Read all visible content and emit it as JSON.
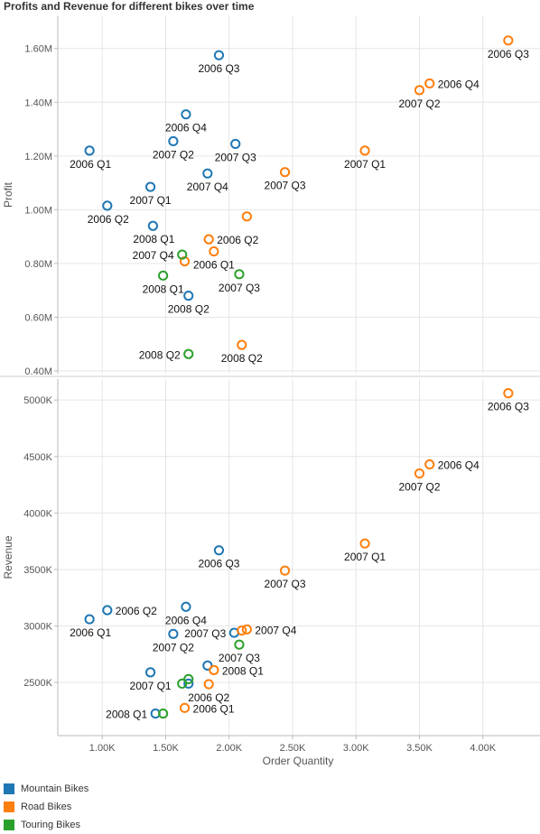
{
  "title": "Profits and Revenue for different bikes over time",
  "colors": {
    "Mountain Bikes": "#1f77b4",
    "Road Bikes": "#ff7f0e",
    "Touring Bikes": "#2ca02c",
    "grid": "#e6e6e6",
    "axis": "#bbbbbb"
  },
  "chart_data": [
    {
      "type": "scatter",
      "title": "Profits and Revenue for different bikes over time",
      "xlabel": "Order Quantity",
      "ylabel": "Profit",
      "xlim": [
        650,
        4450
      ],
      "ylim": [
        390000,
        1720000
      ],
      "x_ticks": [
        {
          "v": 1000,
          "label": "1.00K"
        },
        {
          "v": 1500,
          "label": "1.50K"
        },
        {
          "v": 2000,
          "label": "2.00K"
        },
        {
          "v": 2500,
          "label": "2.50K"
        },
        {
          "v": 3000,
          "label": "3.00K"
        },
        {
          "v": 3500,
          "label": "3.50K"
        },
        {
          "v": 4000,
          "label": "4.00K"
        }
      ],
      "y_ticks": [
        {
          "v": 400000,
          "label": "0.40M"
        },
        {
          "v": 600000,
          "label": "0.60M"
        },
        {
          "v": 800000,
          "label": "0.80M"
        },
        {
          "v": 1000000,
          "label": "1.00M"
        },
        {
          "v": 1200000,
          "label": "1.20M"
        },
        {
          "v": 1400000,
          "label": "1.40M"
        },
        {
          "v": 1600000,
          "label": "1.60M"
        }
      ],
      "series": [
        {
          "name": "Mountain Bikes",
          "points": [
            {
              "label": "2006 Q1",
              "x": 900,
              "y": 1220000,
              "pos": "bl"
            },
            {
              "label": "2006 Q2",
              "x": 1040,
              "y": 1015000,
              "pos": "bl"
            },
            {
              "label": "2006 Q3",
              "x": 1920,
              "y": 1575000,
              "pos": "b"
            },
            {
              "label": "2006 Q4",
              "x": 1660,
              "y": 1355000,
              "pos": "b"
            },
            {
              "label": "2007 Q1",
              "x": 1380,
              "y": 1085000,
              "pos": "b"
            },
            {
              "label": "2007 Q2",
              "x": 1560,
              "y": 1255000,
              "pos": "b"
            },
            {
              "label": "2007 Q3",
              "x": 2050,
              "y": 1245000,
              "pos": "b"
            },
            {
              "label": "2007 Q4",
              "x": 1830,
              "y": 1135000,
              "pos": "b"
            },
            {
              "label": "2008 Q1",
              "x": 1400,
              "y": 940000,
              "pos": "bl"
            },
            {
              "label": "2008 Q2",
              "x": 1680,
              "y": 680000,
              "pos": "b"
            }
          ]
        },
        {
          "name": "Road Bikes",
          "points": [
            {
              "label": "2006 Q1",
              "x": 1880,
              "y": 845000,
              "pos": "b"
            },
            {
              "label": "2006 Q2",
              "x": 1840,
              "y": 890000,
              "pos": "r"
            },
            {
              "label": "2006 Q3",
              "x": 4200,
              "y": 1630000,
              "pos": "b"
            },
            {
              "label": "2006 Q4",
              "x": 3580,
              "y": 1470000,
              "pos": "r"
            },
            {
              "label": "2007 Q1",
              "x": 3070,
              "y": 1220000,
              "pos": "b"
            },
            {
              "label": "2007 Q2",
              "x": 3500,
              "y": 1445000,
              "pos": "b"
            },
            {
              "label": "2007 Q3",
              "x": 2440,
              "y": 1140000,
              "pos": "b"
            },
            {
              "label": "2007 Q4",
              "x": 2140,
              "y": 975000,
              "pos": "none"
            },
            {
              "label": "2008 Q1",
              "x": 1650,
              "y": 808000,
              "pos": "none"
            },
            {
              "label": "2008 Q2",
              "x": 2100,
              "y": 497000,
              "pos": "b"
            }
          ]
        },
        {
          "name": "Touring Bikes",
          "points": [
            {
              "label": "2007 Q3",
              "x": 2080,
              "y": 760000,
              "pos": "b"
            },
            {
              "label": "2007 Q4",
              "x": 1630,
              "y": 833000,
              "pos": "l"
            },
            {
              "label": "2008 Q1",
              "x": 1480,
              "y": 755000,
              "pos": "b"
            },
            {
              "label": "2008 Q2",
              "x": 1680,
              "y": 463000,
              "pos": "l"
            }
          ]
        }
      ]
    },
    {
      "type": "scatter",
      "xlabel": "Order Quantity",
      "ylabel": "Revenue",
      "xlim": [
        650,
        4450
      ],
      "ylim": [
        2030000,
        5185000
      ],
      "x_ticks": [
        {
          "v": 1000,
          "label": "1.00K"
        },
        {
          "v": 1500,
          "label": "1.50K"
        },
        {
          "v": 2000,
          "label": "2.00K"
        },
        {
          "v": 2500,
          "label": "2.50K"
        },
        {
          "v": 3000,
          "label": "3.00K"
        },
        {
          "v": 3500,
          "label": "3.50K"
        },
        {
          "v": 4000,
          "label": "4.00K"
        }
      ],
      "y_ticks": [
        {
          "v": 2500000,
          "label": "2500K"
        },
        {
          "v": 3000000,
          "label": "3000K"
        },
        {
          "v": 3500000,
          "label": "3500K"
        },
        {
          "v": 4000000,
          "label": "4000K"
        },
        {
          "v": 4500000,
          "label": "4500K"
        },
        {
          "v": 5000000,
          "label": "5000K"
        }
      ],
      "series": [
        {
          "name": "Mountain Bikes",
          "points": [
            {
              "label": "2006 Q1",
              "x": 900,
              "y": 3060000,
              "pos": "bl"
            },
            {
              "label": "2006 Q2",
              "x": 1040,
              "y": 3140000,
              "pos": "r"
            },
            {
              "label": "2006 Q3",
              "x": 1920,
              "y": 3670000,
              "pos": "b"
            },
            {
              "label": "2006 Q4",
              "x": 1660,
              "y": 3170000,
              "pos": "b"
            },
            {
              "label": "2007 Q1",
              "x": 1380,
              "y": 2590000,
              "pos": "b"
            },
            {
              "label": "2007 Q2",
              "x": 1560,
              "y": 2930000,
              "pos": "b"
            },
            {
              "label": "2007 Q3",
              "x": 2040,
              "y": 2940000,
              "pos": "l"
            },
            {
              "label": "2007 Q4",
              "x": 1830,
              "y": 2650000,
              "pos": "none"
            },
            {
              "label": "2008 Q1",
              "x": 1420,
              "y": 2225000,
              "pos": "l"
            },
            {
              "label": "2008 Q2",
              "x": 1680,
              "y": 2490000,
              "pos": "none"
            }
          ]
        },
        {
          "name": "Road Bikes",
          "points": [
            {
              "label": "2006 Q1",
              "x": 1650,
              "y": 2275000,
              "pos": "r"
            },
            {
              "label": "2006 Q2",
              "x": 1840,
              "y": 2485000,
              "pos": "b"
            },
            {
              "label": "2006 Q3",
              "x": 4200,
              "y": 5060000,
              "pos": "b"
            },
            {
              "label": "2006 Q4",
              "x": 3580,
              "y": 4430000,
              "pos": "r"
            },
            {
              "label": "2007 Q1",
              "x": 3070,
              "y": 3730000,
              "pos": "b"
            },
            {
              "label": "2007 Q2",
              "x": 3500,
              "y": 4350000,
              "pos": "b"
            },
            {
              "label": "2007 Q3",
              "x": 2440,
              "y": 3490000,
              "pos": "b"
            },
            {
              "label": "2007 Q4",
              "x": 2140,
              "y": 2970000,
              "pos": "r"
            },
            {
              "label": "2008 Q1",
              "x": 1880,
              "y": 2610000,
              "pos": "r"
            },
            {
              "label": "2008 Q2",
              "x": 2100,
              "y": 2960000,
              "pos": "none"
            }
          ]
        },
        {
          "name": "Touring Bikes",
          "points": [
            {
              "label": "2007 Q3",
              "x": 2080,
              "y": 2835000,
              "pos": "b"
            },
            {
              "label": "2007 Q4",
              "x": 1630,
              "y": 2490000,
              "pos": "none"
            },
            {
              "label": "2008 Q1",
              "x": 1480,
              "y": 2225000,
              "pos": "none"
            },
            {
              "label": "2008 Q2",
              "x": 1680,
              "y": 2530000,
              "pos": "none"
            }
          ]
        }
      ]
    }
  ],
  "legend": [
    {
      "name": "Mountain Bikes",
      "color": "#1f77b4"
    },
    {
      "name": "Road Bikes",
      "color": "#ff7f0e"
    },
    {
      "name": "Touring Bikes",
      "color": "#2ca02c"
    }
  ]
}
